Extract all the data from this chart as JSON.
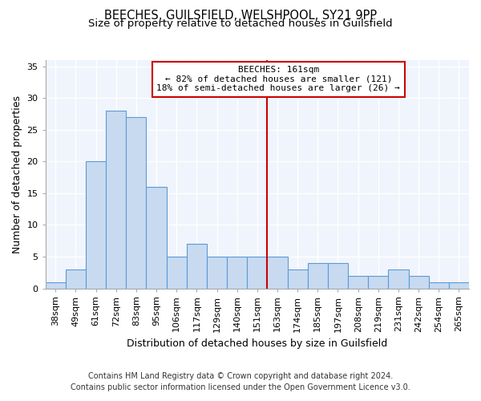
{
  "title_line1": "BEECHES, GUILSFIELD, WELSHPOOL, SY21 9PP",
  "title_line2": "Size of property relative to detached houses in Guilsfield",
  "xlabel": "Distribution of detached houses by size in Guilsfield",
  "ylabel": "Number of detached properties",
  "categories": [
    "38sqm",
    "49sqm",
    "61sqm",
    "72sqm",
    "83sqm",
    "95sqm",
    "106sqm",
    "117sqm",
    "129sqm",
    "140sqm",
    "151sqm",
    "163sqm",
    "174sqm",
    "185sqm",
    "197sqm",
    "208sqm",
    "219sqm",
    "231sqm",
    "242sqm",
    "254sqm",
    "265sqm"
  ],
  "values": [
    1,
    3,
    20,
    28,
    27,
    16,
    5,
    7,
    5,
    5,
    5,
    5,
    3,
    4,
    4,
    2,
    2,
    3,
    2,
    1,
    1
  ],
  "bar_color": "#c8daf0",
  "bar_edge_color": "#5b9bd5",
  "vline_x_index": 11,
  "vline_color": "#cc0000",
  "annotation_title": "BEECHES: 161sqm",
  "annotation_line1": "← 82% of detached houses are smaller (121)",
  "annotation_line2": "18% of semi-detached houses are larger (26) →",
  "annotation_box_color": "#cc0000",
  "ylim": [
    0,
    36
  ],
  "yticks": [
    0,
    5,
    10,
    15,
    20,
    25,
    30,
    35
  ],
  "footer_line1": "Contains HM Land Registry data © Crown copyright and database right 2024.",
  "footer_line2": "Contains public sector information licensed under the Open Government Licence v3.0.",
  "bg_color": "#f0f4fc",
  "grid_color": "#d8e0ec",
  "title_fontsize": 10.5,
  "subtitle_fontsize": 9.5,
  "axis_label_fontsize": 9,
  "tick_fontsize": 8,
  "footer_fontsize": 7
}
